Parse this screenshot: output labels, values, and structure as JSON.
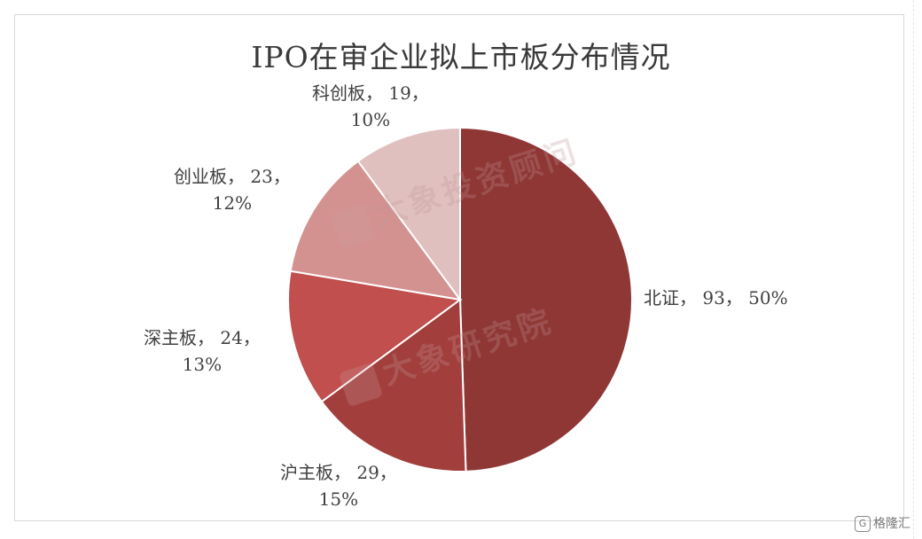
{
  "chart_data": {
    "type": "pie",
    "title": "IPO在审企业拟上市板分布情况",
    "slices": [
      {
        "name": "北证",
        "value": 93,
        "percent": "50%",
        "color": "#8f3735",
        "label": "北证， 93， 50%"
      },
      {
        "name": "沪主板",
        "value": 29,
        "percent": "15%",
        "color": "#a23f3d",
        "label_line1": "沪主板， 29，",
        "label_line2": "15%"
      },
      {
        "name": "深主板",
        "value": 24,
        "percent": "13%",
        "color": "#c04f4d",
        "label_line1": "深主板， 24，",
        "label_line2": "13%"
      },
      {
        "name": "创业板",
        "value": 23,
        "percent": "12%",
        "color": "#d39290",
        "label_line1": "创业板， 23，",
        "label_line2": "12%"
      },
      {
        "name": "科创板",
        "value": 19,
        "percent": "10%",
        "color": "#e0c0bf",
        "label_line1": "科创板， 19，",
        "label_line2": "10%"
      }
    ],
    "start_angle_deg": 0,
    "direction": "clockwise",
    "legend": "none"
  },
  "watermarks": [
    "大象投资顾问",
    "大象研究院"
  ],
  "brand": {
    "mark": "G",
    "text": "格隆汇"
  }
}
